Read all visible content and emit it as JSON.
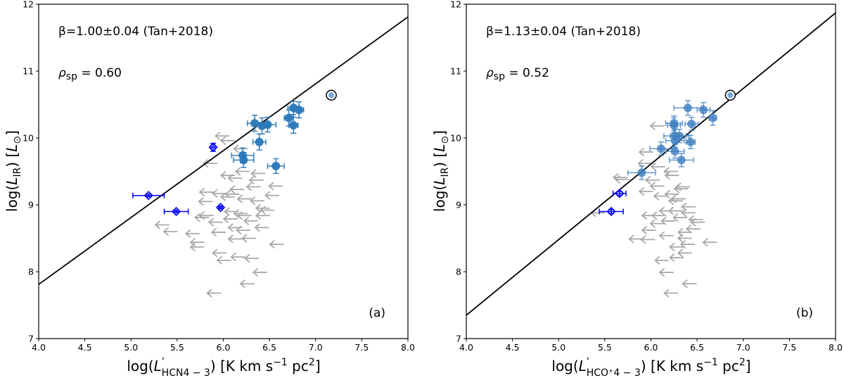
{
  "chart_data": [
    {
      "type": "scatter",
      "panel_label": "(a)",
      "annotation_beta": "β=1.00±0.04 (Tan+2018)",
      "annotation_rho_symbol": "ρ",
      "annotation_rho_sub": "sp",
      "annotation_rho_value": " = 0.60",
      "xlabel": {
        "pre": "log(",
        "L": "L",
        "prime": "'",
        "sub": "HCN4 − 3",
        "mid": ") [K km s",
        "sup1": "−1",
        "mid2": " pc",
        "sup2": "2",
        "post": "]"
      },
      "ylabel": {
        "pre": "log(",
        "L": "L",
        "sub": "IR",
        "post": ") [",
        "unit": "L",
        "unit_sub": "⊙",
        "end": "]"
      },
      "xlim": [
        4.0,
        8.0
      ],
      "ylim": [
        7,
        12
      ],
      "xticks": [
        "4.0",
        "4.5",
        "5.0",
        "5.5",
        "6.0",
        "6.5",
        "7.0",
        "7.5",
        "8.0"
      ],
      "yticks": [
        "7",
        "8",
        "9",
        "10",
        "11",
        "12"
      ],
      "fit_line": {
        "slope": 1.0,
        "intercept": 3.81
      },
      "colors": {
        "detections": "#2a78b8",
        "diamonds": "#0000ff",
        "limits": "#aaaaaa",
        "circled": "#7aa6dc",
        "line": "#000000"
      },
      "detections_alpha": 0.95,
      "detections": [
        [
          6.34,
          10.22,
          0.08,
          0.12
        ],
        [
          6.42,
          10.18,
          0.08,
          0.12
        ],
        [
          6.48,
          10.2,
          0.09,
          0.11
        ],
        [
          6.71,
          10.3,
          0.05,
          0.12
        ],
        [
          6.76,
          10.45,
          0.06,
          0.1
        ],
        [
          6.82,
          10.42,
          0.05,
          0.12
        ],
        [
          6.76,
          10.19,
          0.05,
          0.12
        ],
        [
          6.39,
          9.94,
          0.07,
          0.12
        ],
        [
          6.21,
          9.74,
          0.12,
          0.11
        ],
        [
          6.22,
          9.67,
          0.11,
          0.11
        ],
        [
          6.57,
          9.58,
          0.09,
          0.11
        ]
      ],
      "diamonds": [
        [
          5.89,
          9.86,
          0.02,
          0.06
        ],
        [
          5.19,
          9.14,
          0.17,
          0.02
        ],
        [
          5.49,
          8.9,
          0.13,
          0.02
        ],
        [
          5.97,
          8.96,
          0.02,
          0.02
        ]
      ],
      "circled": [
        [
          7.17,
          10.64
        ]
      ],
      "upper_limits": [
        [
          6.06,
          10.03
        ],
        [
          6.12,
          9.96
        ],
        [
          5.93,
          9.62
        ],
        [
          6.26,
          9.84
        ],
        [
          6.12,
          9.44
        ],
        [
          6.2,
          9.4
        ],
        [
          6.28,
          9.5
        ],
        [
          6.45,
          9.47
        ],
        [
          6.43,
          9.37
        ],
        [
          6.64,
          9.28
        ],
        [
          6.4,
          9.27
        ],
        [
          6.22,
          9.23
        ],
        [
          5.89,
          9.19
        ],
        [
          6.03,
          9.17
        ],
        [
          6.17,
          9.16
        ],
        [
          6.6,
          9.14
        ],
        [
          6.3,
          9.09
        ],
        [
          6.44,
          9.06
        ],
        [
          5.88,
          9.05
        ],
        [
          6.12,
          9.12
        ],
        [
          6.5,
          8.95
        ],
        [
          6.55,
          8.92
        ],
        [
          6.16,
          8.9
        ],
        [
          6.26,
          8.87
        ],
        [
          5.84,
          8.81
        ],
        [
          5.99,
          8.74
        ],
        [
          6.15,
          8.79
        ],
        [
          6.37,
          8.76
        ],
        [
          6.49,
          8.66
        ],
        [
          6.2,
          8.66
        ],
        [
          6.29,
          8.62
        ],
        [
          5.41,
          8.7
        ],
        [
          5.5,
          8.6
        ],
        [
          5.74,
          8.57
        ],
        [
          6.02,
          8.59
        ],
        [
          6.2,
          8.49
        ],
        [
          6.35,
          8.5
        ],
        [
          6.65,
          8.41
        ],
        [
          5.79,
          8.44
        ],
        [
          5.79,
          8.37
        ],
        [
          6.03,
          8.28
        ],
        [
          6.08,
          8.17
        ],
        [
          6.23,
          8.22
        ],
        [
          6.38,
          8.2
        ],
        [
          6.47,
          7.99
        ],
        [
          6.33,
          7.82
        ],
        [
          5.97,
          7.68
        ],
        [
          5.89,
          8.84
        ],
        [
          6.3,
          8.84
        ],
        [
          6.5,
          8.84
        ]
      ]
    },
    {
      "type": "scatter",
      "panel_label": "(b)",
      "annotation_beta": "β=1.13±0.04 (Tan+2018)",
      "annotation_rho_symbol": "ρ",
      "annotation_rho_sub": "sp",
      "annotation_rho_value": " = 0.52",
      "xlabel": {
        "pre": "log(",
        "L": "L",
        "prime": "'",
        "sub": "HCO⁺4 − 3",
        "mid": ") [K km s",
        "sup1": "−1",
        "mid2": " pc",
        "sup2": "2",
        "post": "]"
      },
      "ylabel": {
        "pre": "log(",
        "L": "L",
        "sub": "IR",
        "post": ") [",
        "unit": "L",
        "unit_sub": "⊙",
        "end": "]"
      },
      "xlim": [
        4.0,
        8.0
      ],
      "ylim": [
        7,
        12
      ],
      "xticks": [
        "4.0",
        "4.5",
        "5.0",
        "5.5",
        "6.0",
        "6.5",
        "7.0",
        "7.5",
        "8.0"
      ],
      "yticks": [
        "7",
        "8",
        "9",
        "10",
        "11",
        "12"
      ],
      "fit_line": {
        "slope": 1.13,
        "intercept": 2.83
      },
      "colors": {
        "detections": "#3f7fbf",
        "diamonds": "#0000ff",
        "limits": "#aaaaaa",
        "circled": "#7aa6dc",
        "line": "#000000"
      },
      "detections_alpha": 0.8,
      "detections": [
        [
          6.4,
          10.45,
          0.15,
          0.11
        ],
        [
          6.57,
          10.42,
          0.07,
          0.11
        ],
        [
          6.67,
          10.3,
          0.04,
          0.11
        ],
        [
          6.25,
          10.22,
          0.09,
          0.11
        ],
        [
          6.25,
          10.19,
          0.07,
          0.11
        ],
        [
          6.44,
          10.21,
          0.07,
          0.1
        ],
        [
          6.26,
          10.03,
          0.12,
          0.1
        ],
        [
          6.31,
          10.03,
          0.1,
          0.1
        ],
        [
          6.26,
          9.96,
          0.1,
          0.1
        ],
        [
          6.43,
          9.94,
          0.05,
          0.1
        ],
        [
          6.11,
          9.84,
          0.12,
          0.1
        ],
        [
          6.26,
          9.8,
          0.1,
          0.1
        ],
        [
          6.33,
          9.67,
          0.13,
          0.1
        ],
        [
          5.9,
          9.48,
          0.15,
          0.1
        ]
      ],
      "diamonds": [
        [
          5.66,
          9.17,
          0.07,
          0.03
        ],
        [
          5.57,
          8.9,
          0.13,
          0.03
        ]
      ],
      "circled": [
        [
          6.86,
          10.64
        ]
      ],
      "upper_limits": [
        [
          6.14,
          10.18
        ],
        [
          6.02,
          9.79
        ],
        [
          6.01,
          9.62
        ],
        [
          6.15,
          9.57
        ],
        [
          6.29,
          9.5
        ],
        [
          6.3,
          9.44
        ],
        [
          5.74,
          9.41
        ],
        [
          5.76,
          9.38
        ],
        [
          6.09,
          9.37
        ],
        [
          6.14,
          9.28
        ],
        [
          6.42,
          9.27
        ],
        [
          6.4,
          9.24
        ],
        [
          6.02,
          9.2
        ],
        [
          6.3,
          9.16
        ],
        [
          6.18,
          9.13
        ],
        [
          6.37,
          9.09
        ],
        [
          6.34,
          9.06
        ],
        [
          6.48,
          8.97
        ],
        [
          6.48,
          8.88
        ],
        [
          6.34,
          8.91
        ],
        [
          6.24,
          8.91
        ],
        [
          6.05,
          8.84
        ],
        [
          6.16,
          8.84
        ],
        [
          6.39,
          8.81
        ],
        [
          6.56,
          8.78
        ],
        [
          6.58,
          8.74
        ],
        [
          6.26,
          8.76
        ],
        [
          6.14,
          8.72
        ],
        [
          6.53,
          8.64
        ],
        [
          6.05,
          8.62
        ],
        [
          6.24,
          8.54
        ],
        [
          6.44,
          8.59
        ],
        [
          5.91,
          8.49
        ],
        [
          6.04,
          8.48
        ],
        [
          6.44,
          8.5
        ],
        [
          6.71,
          8.44
        ],
        [
          6.35,
          8.37
        ],
        [
          6.47,
          8.41
        ],
        [
          6.44,
          8.28
        ],
        [
          6.35,
          8.21
        ],
        [
          6.19,
          8.17
        ],
        [
          6.24,
          7.99
        ],
        [
          6.49,
          7.82
        ],
        [
          6.29,
          7.68
        ],
        [
          5.5,
          8.88
        ]
      ]
    }
  ]
}
